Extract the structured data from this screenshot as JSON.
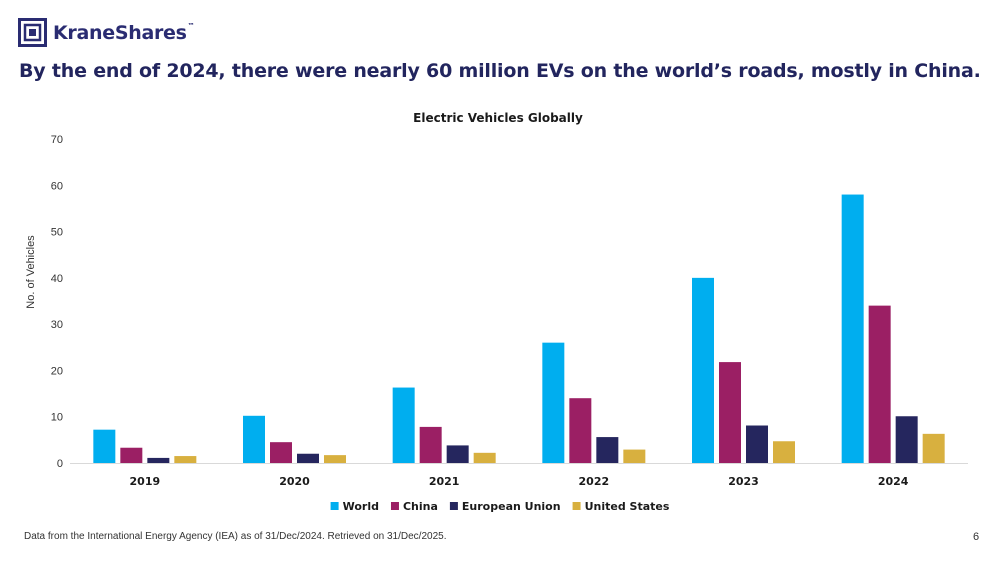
{
  "brand": {
    "name": "KraneShares",
    "tm": "™"
  },
  "headline": "By the end of 2024, there were nearly 60 million EVs on the world’s roads, mostly in China.",
  "footnote": "Data from the International Energy Agency (IEA) as of 31/Dec/2024. Retrieved on 31/Dec/2025.",
  "page_number": "6",
  "colors": {
    "brand_navy": "#2a2c72",
    "world": "#00aeef",
    "china": "#9b1f64",
    "eu": "#25265e",
    "us": "#d8b03f"
  },
  "chart_data": {
    "type": "bar",
    "title": "Electric Vehicles Globally",
    "xlabel": "",
    "ylabel": "No. of Vehicles",
    "ylim": [
      0,
      70
    ],
    "yticks": [
      0,
      10,
      20,
      30,
      40,
      50,
      60,
      70
    ],
    "grid": false,
    "legend_position": "bottom",
    "categories": [
      "2019",
      "2020",
      "2021",
      "2022",
      "2023",
      "2024"
    ],
    "series": [
      {
        "name": "World",
        "color": "#00aeef",
        "values": [
          7.2,
          10.2,
          16.3,
          26.0,
          40.0,
          58.0
        ]
      },
      {
        "name": "China",
        "color": "#9b1f64",
        "values": [
          3.3,
          4.5,
          7.8,
          14.0,
          21.8,
          34.0
        ]
      },
      {
        "name": "European Union",
        "color": "#25265e",
        "values": [
          1.1,
          2.0,
          3.8,
          5.6,
          8.1,
          10.1
        ]
      },
      {
        "name": "United States",
        "color": "#d8b03f",
        "values": [
          1.5,
          1.7,
          2.2,
          2.9,
          4.7,
          6.3
        ]
      }
    ]
  }
}
